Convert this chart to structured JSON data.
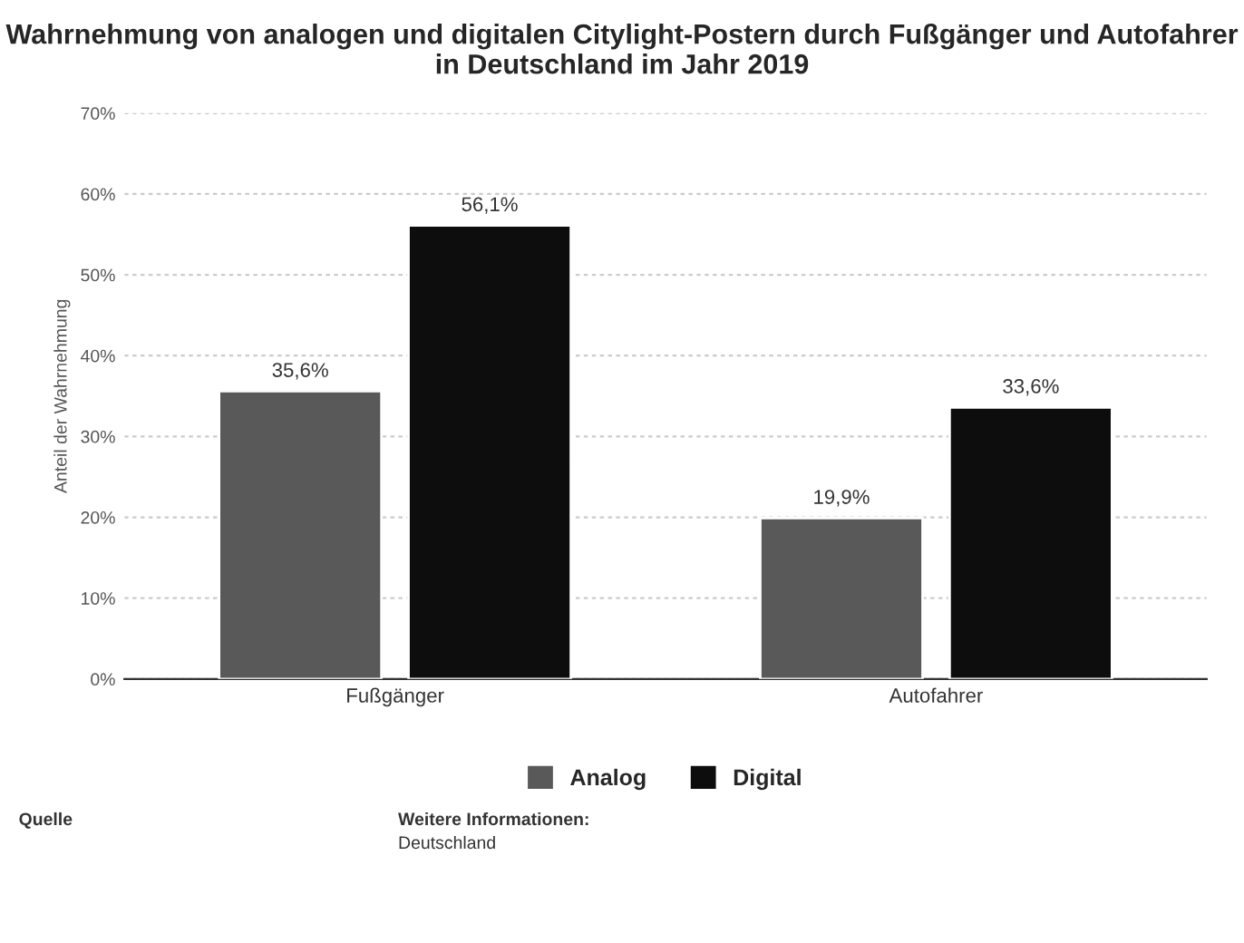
{
  "chart_data": {
    "type": "bar",
    "title": "Wahrnehmung von analogen und digitalen Citylight-Postern durch Fußgänger und Autofahrer in Deutschland im Jahr 2019",
    "ylabel": "Anteil der Wahrnehmung",
    "categories": [
      "Fußgänger",
      "Autofahrer"
    ],
    "series": [
      {
        "name": "Analog",
        "color": "#595959",
        "values": [
          35.6,
          19.9
        ],
        "value_labels": [
          "35,6%",
          "19,9%"
        ]
      },
      {
        "name": "Digital",
        "color": "#0d0d0d",
        "values": [
          56.1,
          33.6
        ],
        "value_labels": [
          "56,1%",
          "33,6%"
        ]
      }
    ],
    "ylim": [
      0,
      70
    ],
    "yticks": [
      {
        "value": 0,
        "label": "0%"
      },
      {
        "value": 10,
        "label": "10%"
      },
      {
        "value": 20,
        "label": "20%"
      },
      {
        "value": 30,
        "label": "30%"
      },
      {
        "value": 40,
        "label": "40%"
      },
      {
        "value": 50,
        "label": "50%"
      },
      {
        "value": 60,
        "label": "60%"
      },
      {
        "value": 70,
        "label": "70%"
      }
    ],
    "grid": "y",
    "legend": "bottom",
    "annotations": [
      "Quelle",
      "Weitere Informationen:",
      "Deutschland"
    ]
  }
}
